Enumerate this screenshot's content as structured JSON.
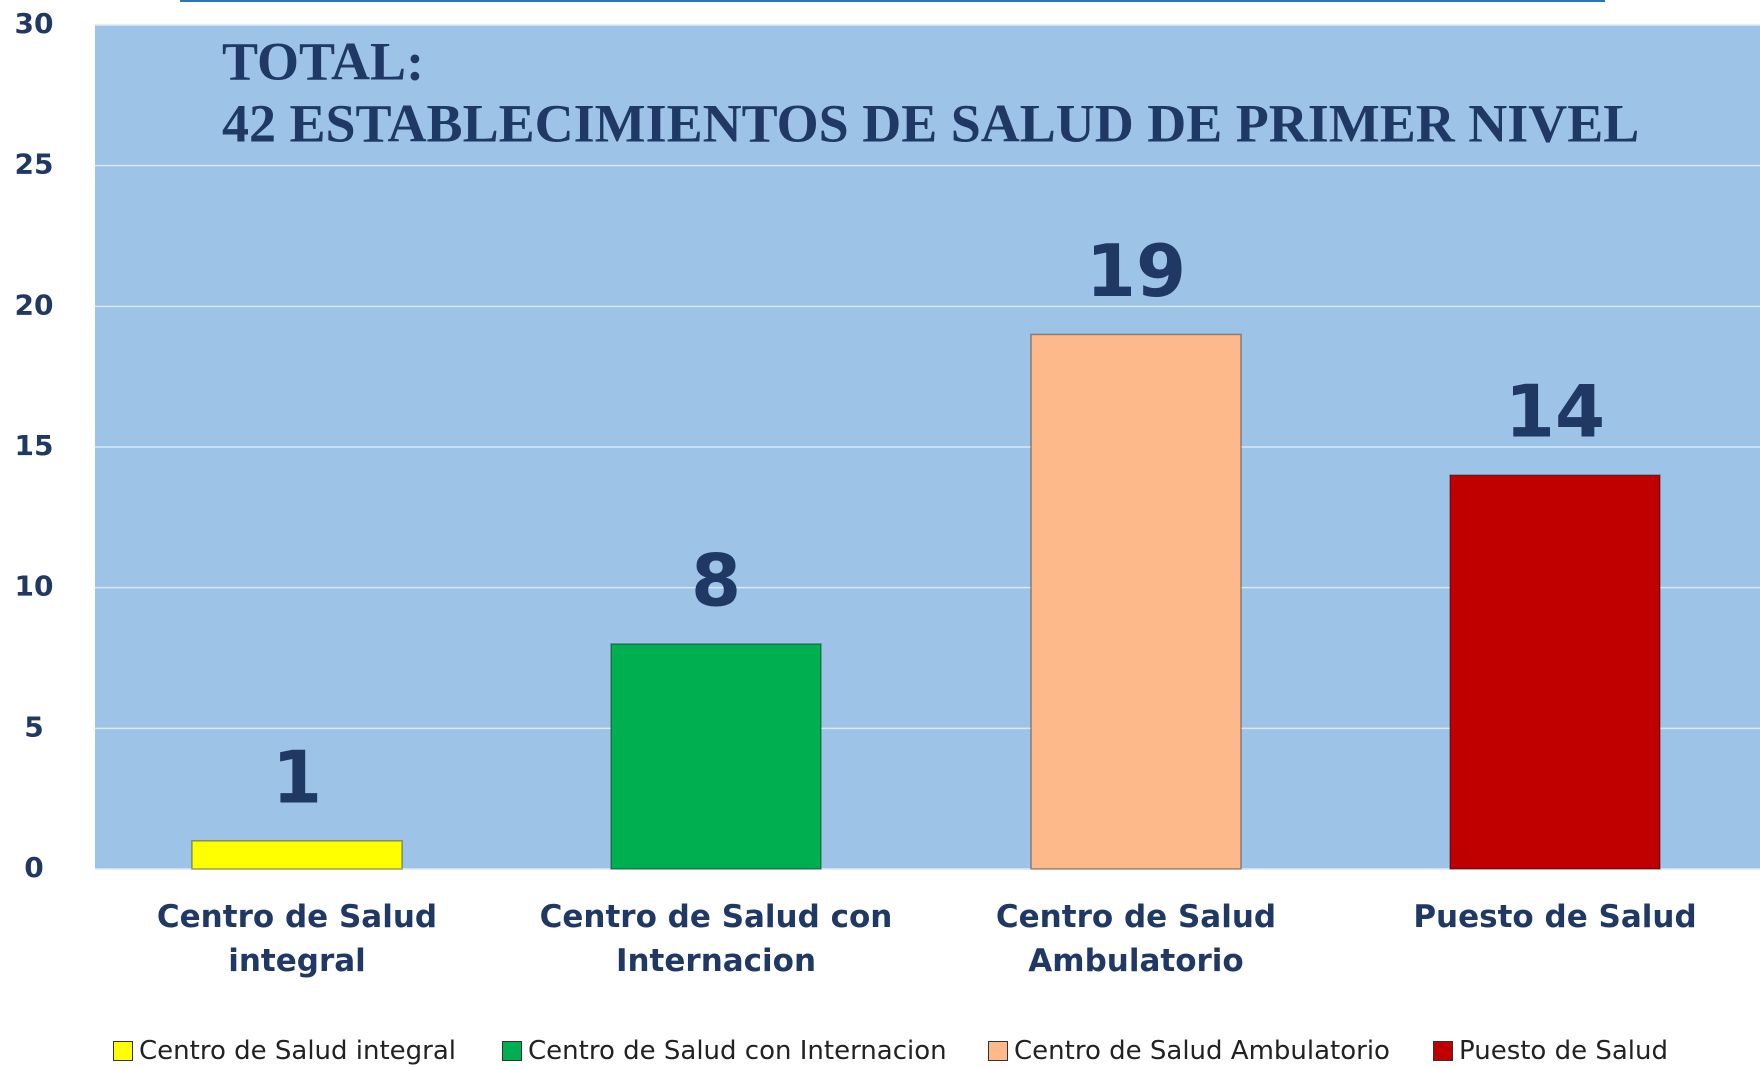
{
  "chart_data": {
    "type": "bar",
    "title": "TOTAL:",
    "subtitle": "42 ESTABLECIMIENTOS DE SALUD DE PRIMER NIVEL",
    "categories": [
      "Centro de Salud integral",
      "Centro de Salud con Internacion",
      "Centro de Salud Ambulatorio",
      "Puesto de Salud"
    ],
    "values": [
      1,
      8,
      19,
      14
    ],
    "colors": [
      "#ffff00",
      "#00b050",
      "#fdb98a",
      "#c00000"
    ],
    "ylim": [
      0,
      30
    ],
    "yticks": [
      0,
      5,
      10,
      15,
      20,
      25,
      30
    ],
    "grid": true,
    "legend": "bottom"
  }
}
